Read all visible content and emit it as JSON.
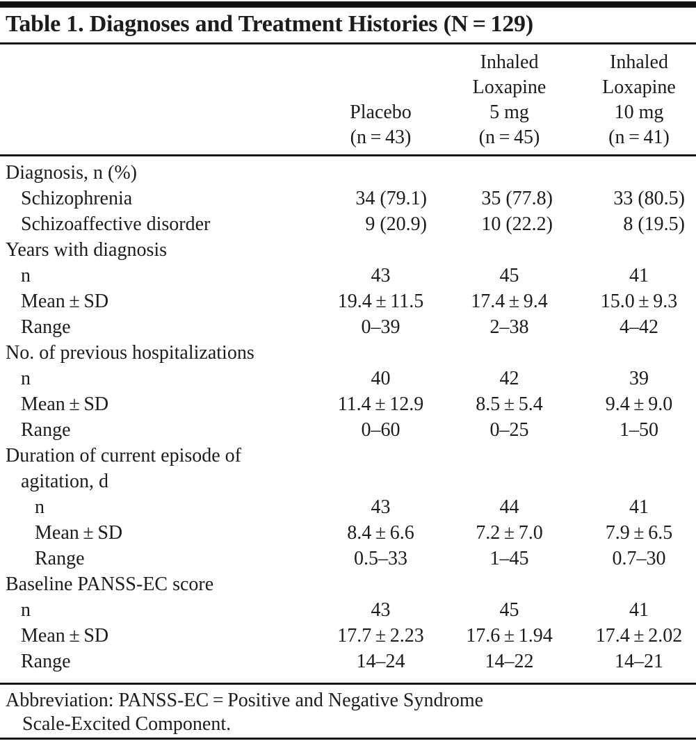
{
  "page": {
    "background": "#ffffff",
    "text_color": "#1c1c1c",
    "rule_color": "#151515"
  },
  "table": {
    "title": "Table 1. Diagnoses and Treatment Histories (N = 129)",
    "columns": [
      {
        "name": "placebo",
        "lines": [
          "Placebo",
          "(n = 43)"
        ]
      },
      {
        "name": "inhaled-loxapine-5mg",
        "lines": [
          "Inhaled",
          "Loxapine",
          "5 mg",
          "(n = 45)"
        ]
      },
      {
        "name": "inhaled-loxapine-10mg",
        "lines": [
          "Inhaled",
          "Loxapine",
          "10 mg",
          "(n = 41)"
        ]
      }
    ],
    "rows": [
      {
        "label": "Diagnosis, n (%)",
        "indent": 0,
        "values": null
      },
      {
        "label": "Schizophrenia",
        "indent": 1,
        "align": "right",
        "values": [
          "34 (79.1)",
          "35 (77.8)",
          "33 (80.5)"
        ]
      },
      {
        "label": "Schizoaffective disorder",
        "indent": 1,
        "align": "right",
        "values": [
          "9 (20.9)",
          "10 (22.2)",
          "8 (19.5)"
        ]
      },
      {
        "label": "Years with diagnosis",
        "indent": 0,
        "values": null
      },
      {
        "label": "n",
        "indent": 1,
        "align": "center",
        "values": [
          "43",
          "45",
          "41"
        ]
      },
      {
        "label": "Mean ± SD",
        "indent": 1,
        "align": "center",
        "values": [
          "19.4 ± 11.5",
          "17.4 ± 9.4",
          "15.0 ± 9.3"
        ]
      },
      {
        "label": "Range",
        "indent": 1,
        "align": "center",
        "values": [
          "0–39",
          "2–38",
          "4–42"
        ]
      },
      {
        "label": "No. of previous hospitalizations",
        "indent": 0,
        "values": null
      },
      {
        "label": "n",
        "indent": 1,
        "align": "center",
        "values": [
          "40",
          "42",
          "39"
        ]
      },
      {
        "label": "Mean ± SD",
        "indent": 1,
        "align": "center",
        "values": [
          "11.4 ± 12.9",
          "8.5 ± 5.4",
          "9.4 ± 9.0"
        ]
      },
      {
        "label": "Range",
        "indent": 1,
        "align": "center",
        "values": [
          "0–60",
          "0–25",
          "1–50"
        ]
      },
      {
        "label": "Duration of current episode of",
        "indent": 0,
        "values": null
      },
      {
        "label": "agitation, d",
        "indent": 1,
        "values": null
      },
      {
        "label": "n",
        "indent": 2,
        "align": "center",
        "values": [
          "43",
          "44",
          "41"
        ]
      },
      {
        "label": "Mean ± SD",
        "indent": 2,
        "align": "center",
        "values": [
          "8.4 ± 6.6",
          "7.2 ± 7.0",
          "7.9 ± 6.5"
        ]
      },
      {
        "label": "Range",
        "indent": 2,
        "align": "center",
        "values": [
          "0.5–33",
          "1–45",
          "0.7–30"
        ]
      },
      {
        "label": "Baseline PANSS-EC score",
        "indent": 0,
        "values": null
      },
      {
        "label": "n",
        "indent": 1,
        "align": "center",
        "values": [
          "43",
          "45",
          "41"
        ]
      },
      {
        "label": "Mean ± SD",
        "indent": 1,
        "align": "center",
        "values": [
          "17.7 ± 2.23",
          "17.6 ± 1.94",
          "17.4 ± 2.02"
        ]
      },
      {
        "label": "Range",
        "indent": 1,
        "align": "center",
        "values": [
          "14–24",
          "14–22",
          "14–21"
        ]
      }
    ],
    "footnote_lines": [
      "Abbreviation: PANSS-EC = Positive and Negative Syndrome",
      "Scale-Excited Component."
    ]
  }
}
